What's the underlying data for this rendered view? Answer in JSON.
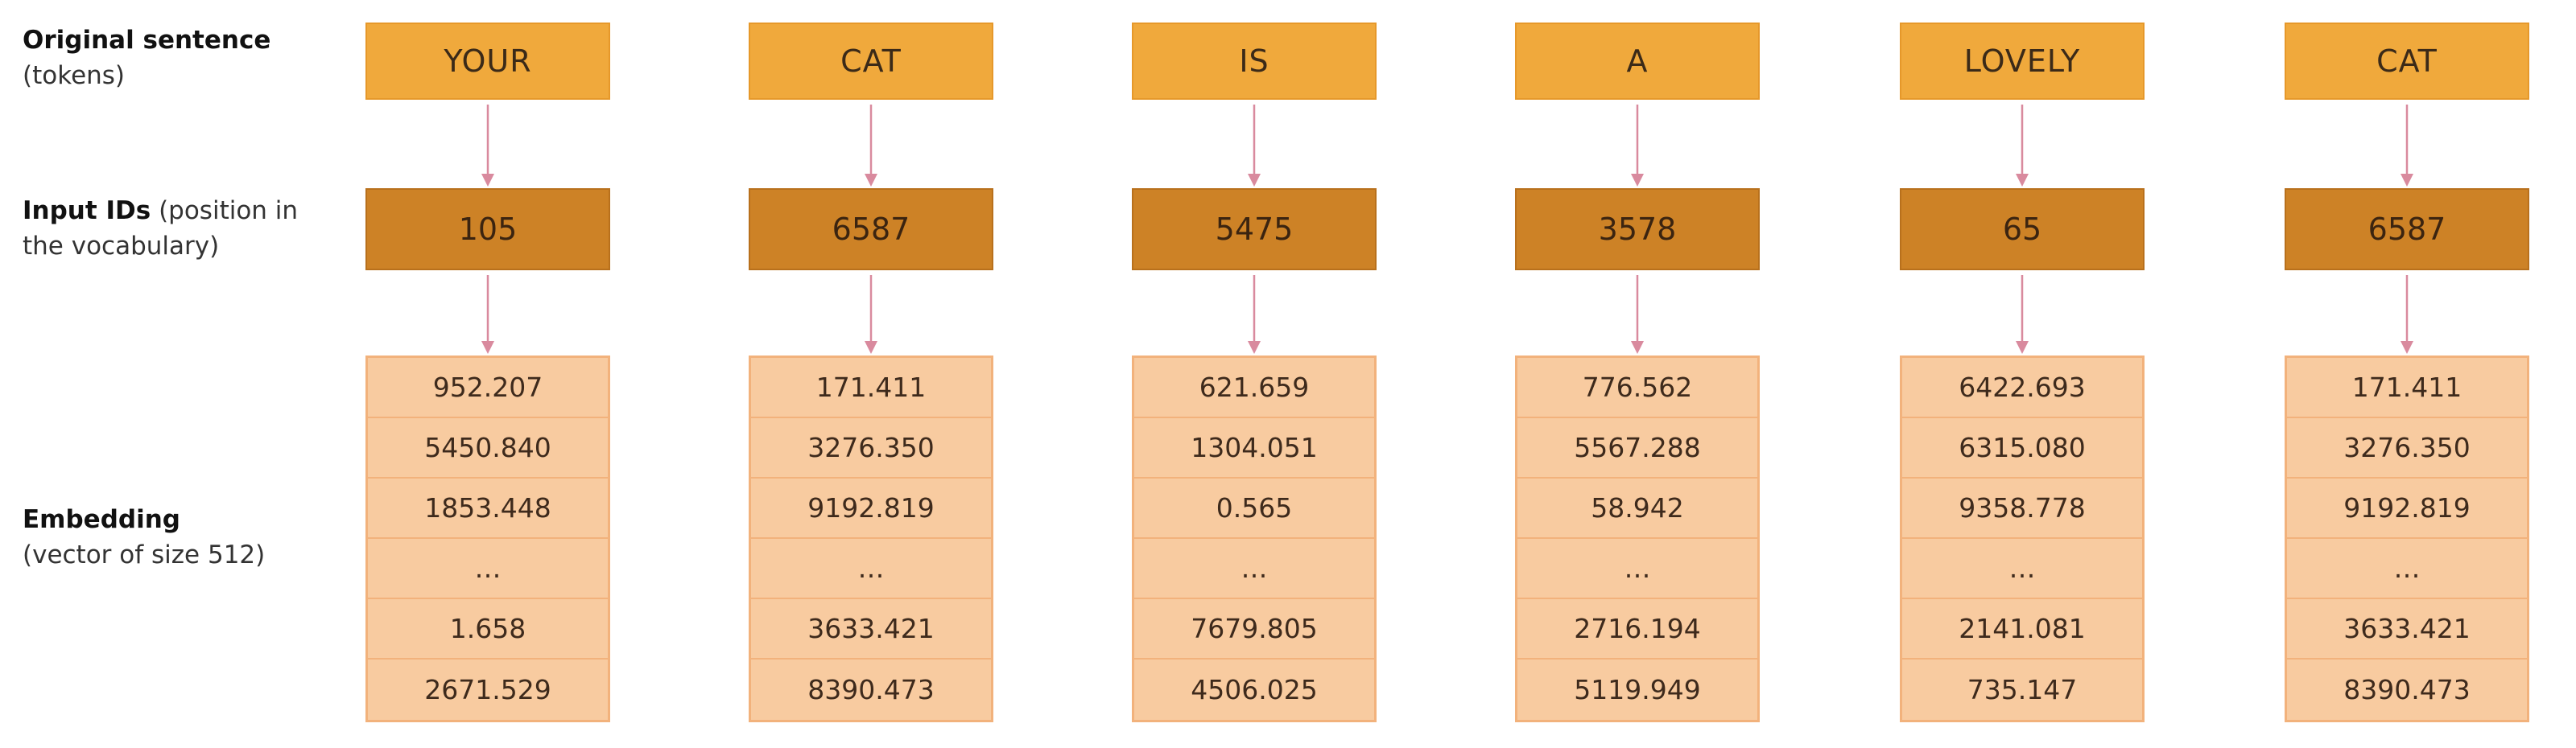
{
  "labels": {
    "sentence_title": "Original sentence",
    "sentence_sub": "(tokens)",
    "ids_title": "Input IDs",
    "ids_sub_1": "(position in",
    "ids_sub_2": "the vocabulary)",
    "emb_title": "Embedding",
    "emb_sub": "(vector of size 512)"
  },
  "columns": [
    {
      "token": "YOUR",
      "id": "105",
      "embedding": [
        "952.207",
        "5450.840",
        "1853.448",
        "…",
        "1.658",
        "2671.529"
      ]
    },
    {
      "token": "CAT",
      "id": "6587",
      "embedding": [
        "171.411",
        "3276.350",
        "9192.819",
        "…",
        "3633.421",
        "8390.473"
      ]
    },
    {
      "token": "IS",
      "id": "5475",
      "embedding": [
        "621.659",
        "1304.051",
        "0.565",
        "…",
        "7679.805",
        "4506.025"
      ]
    },
    {
      "token": "A",
      "id": "3578",
      "embedding": [
        "776.562",
        "5567.288",
        "58.942",
        "…",
        "2716.194",
        "5119.949"
      ]
    },
    {
      "token": "LOVELY",
      "id": "65",
      "embedding": [
        "6422.693",
        "6315.080",
        "9358.778",
        "…",
        "2141.081",
        "735.147"
      ]
    },
    {
      "token": "CAT",
      "id": "6587",
      "embedding": [
        "171.411",
        "3276.350",
        "9192.819",
        "…",
        "3633.421",
        "8390.473"
      ]
    }
  ],
  "colors": {
    "token_fill": "#f0a93c",
    "id_fill": "#cd8226",
    "embedding_fill": "#f8cba0",
    "arrow": "#d98a9e"
  }
}
